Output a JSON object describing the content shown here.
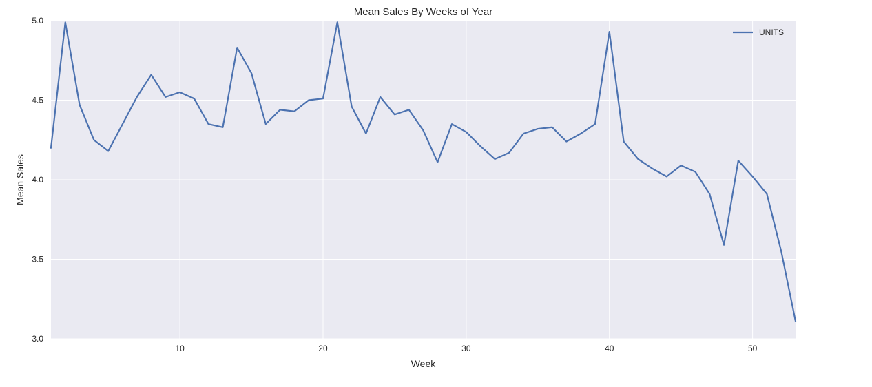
{
  "chart_data": {
    "type": "line",
    "title": "Mean Sales By Weeks of Year",
    "xlabel": "Week",
    "ylabel": "Mean Sales",
    "xlim": [
      1,
      53
    ],
    "ylim": [
      3.0,
      5.0
    ],
    "xticks": [
      10,
      20,
      30,
      40,
      50
    ],
    "yticks": [
      3.0,
      3.5,
      4.0,
      4.5,
      5.0
    ],
    "ytick_labels": [
      "3.0",
      "3.5",
      "4.0",
      "4.5",
      "5.0"
    ],
    "grid": true,
    "legend_position": "top-right",
    "colors": {
      "plot_background": "#EAEAF2",
      "grid": "#FFFFFF",
      "series": "#4C72B0"
    },
    "series": [
      {
        "name": "UNITS",
        "x": [
          1,
          2,
          3,
          4,
          5,
          6,
          7,
          8,
          9,
          10,
          11,
          12,
          13,
          14,
          15,
          16,
          17,
          18,
          19,
          20,
          21,
          22,
          23,
          24,
          25,
          26,
          27,
          28,
          29,
          30,
          31,
          32,
          33,
          34,
          35,
          36,
          37,
          38,
          39,
          40,
          41,
          42,
          43,
          44,
          45,
          46,
          47,
          48,
          49,
          50,
          51,
          52,
          53
        ],
        "values": [
          4.2,
          4.99,
          4.47,
          4.25,
          4.18,
          4.35,
          4.52,
          4.66,
          4.52,
          4.55,
          4.51,
          4.35,
          4.33,
          4.83,
          4.67,
          4.35,
          4.44,
          4.43,
          4.5,
          4.51,
          4.99,
          4.46,
          4.29,
          4.52,
          4.41,
          4.44,
          4.31,
          4.11,
          4.35,
          4.3,
          4.21,
          4.13,
          4.17,
          4.29,
          4.32,
          4.33,
          4.24,
          4.29,
          4.35,
          4.93,
          4.24,
          4.13,
          4.07,
          4.02,
          4.09,
          4.05,
          3.91,
          3.59,
          4.12,
          4.02,
          3.91,
          3.55,
          3.11
        ]
      }
    ]
  }
}
